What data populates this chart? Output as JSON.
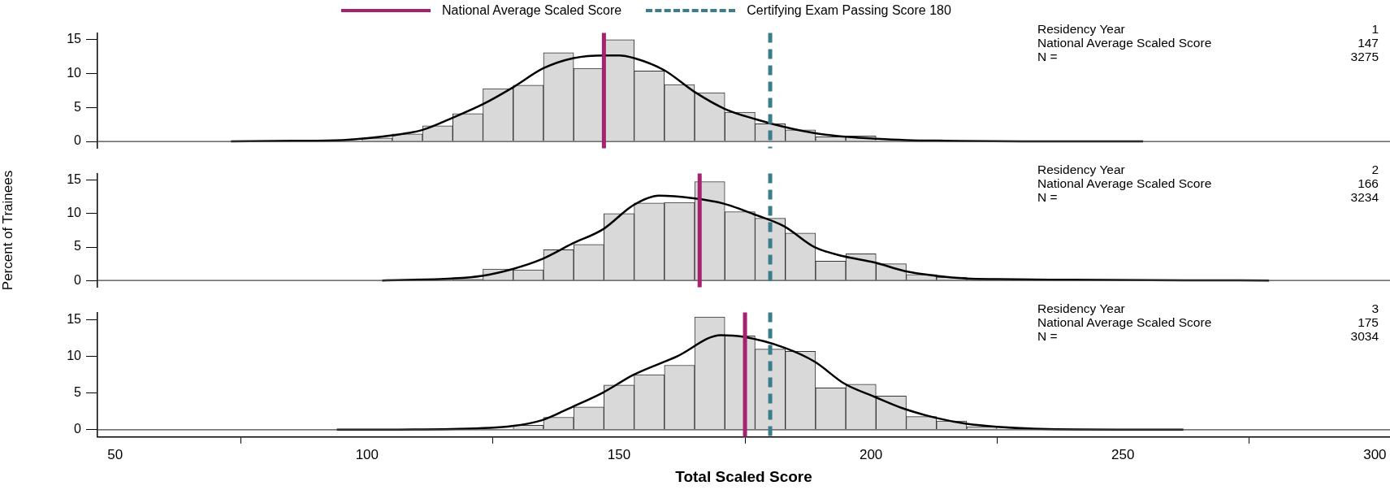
{
  "chart_data": [
    {
      "type": "histogram",
      "bins": [
        99,
        105,
        111,
        117,
        123,
        129,
        135,
        141,
        147,
        153,
        159,
        165,
        171,
        177,
        183,
        189,
        195,
        201,
        207
      ],
      "values": [
        0.5,
        1.1,
        2.3,
        4.1,
        7.8,
        8.3,
        13.1,
        10.8,
        15.0,
        10.4,
        8.4,
        7.2,
        4.3,
        2.6,
        1.7,
        0.7,
        0.8,
        null
      ],
      "color": "#d9d9d9",
      "series": [
        {
          "type": "line",
          "color": "#000000",
          "x": [
            73,
            85,
            95.1,
            105,
            111,
            117,
            123,
            129,
            135,
            141,
            147,
            150,
            153,
            159,
            165,
            171,
            177,
            183,
            189,
            195,
            201,
            207,
            215,
            230,
            254
          ],
          "values": [
            0,
            0.1,
            0.2,
            0.9,
            1.7,
            3.5,
            5.5,
            8.0,
            10.8,
            12.3,
            12.7,
            12.7,
            12.3,
            10.5,
            7.3,
            4.8,
            3.3,
            2.1,
            1.2,
            0.7,
            0.4,
            0.2,
            0.1,
            0,
            0
          ]
        }
      ],
      "xlim": [
        46.5,
        303
      ],
      "ylim": [
        -1,
        16
      ],
      "yticks": [
        0,
        5,
        10,
        15
      ],
      "tick_labels": "y",
      "marker": "none",
      "legend": "top",
      "ref_lines": [
        {
          "axis": "y",
          "value": 0,
          "color": "#444444"
        },
        {
          "axis": "x",
          "value": 147,
          "label": "National Average Scaled Score",
          "color": "#a4226e"
        },
        {
          "axis": "x",
          "value": 180,
          "label": "Certifying Exam Passing Score 180",
          "color": "#3a7d8c",
          "line_style": "dashed"
        }
      ],
      "annotations": [
        "Residency Year 1",
        "National Average Scaled Score 147",
        "N = 3275"
      ]
    },
    {
      "type": "histogram",
      "bins": [
        117,
        123,
        129,
        135,
        141,
        147,
        153,
        159,
        165,
        171,
        177,
        183,
        189,
        195,
        201,
        207,
        213,
        219,
        225
      ],
      "values": [
        0.2,
        1.7,
        1.6,
        4.6,
        5.4,
        10.0,
        11.6,
        11.7,
        14.8,
        10.3,
        9.3,
        7.1,
        2.9,
        4.0,
        2.5,
        0.9,
        0.5,
        0.2
      ],
      "color": "#d9d9d9",
      "series": [
        {
          "type": "line",
          "color": "#000000",
          "x": [
            103,
            116.8,
            122.8,
            128.8,
            134.7,
            140.7,
            146.9,
            152.9,
            157.9,
            164.8,
            170.8,
            176.8,
            182.8,
            188.8,
            194.7,
            200.7,
            206.8,
            213,
            219,
            225,
            240,
            279
          ],
          "values": [
            0,
            0.3,
            0.7,
            1.7,
            3.2,
            5.5,
            7.7,
            11.3,
            12.7,
            12.3,
            11.5,
            9.9,
            8.1,
            5.0,
            3.6,
            2.7,
            1.4,
            0.7,
            0.3,
            0.2,
            0.1,
            0
          ]
        }
      ],
      "xlim": [
        46.5,
        303
      ],
      "ylim": [
        -1,
        16
      ],
      "yticks": [
        0,
        5,
        10,
        15
      ],
      "tick_labels": "y",
      "marker": "none",
      "ylabel": "Percent of Trainees",
      "ref_lines": [
        {
          "axis": "y",
          "value": 0,
          "color": "#444444"
        },
        {
          "axis": "x",
          "value": 166,
          "color": "#a4226e"
        },
        {
          "axis": "x",
          "value": 180,
          "color": "#3a7d8c",
          "line_style": "dashed"
        }
      ],
      "annotations": [
        "Residency Year 2",
        "National Average Scaled Score 166",
        "N = 3234"
      ]
    },
    {
      "type": "histogram",
      "bins": [
        129,
        135,
        141,
        147,
        153,
        159,
        165,
        171,
        177,
        183,
        189,
        195,
        201,
        207,
        213,
        219,
        225
      ],
      "values": [
        0.6,
        1.7,
        3.1,
        6.1,
        7.5,
        8.8,
        15.4,
        12.8,
        11.0,
        10.7,
        5.7,
        6.2,
        4.6,
        1.8,
        1.2,
        0.4
      ],
      "color": "#d9d9d9",
      "series": [
        {
          "type": "line",
          "color": "#000000",
          "x": [
            94,
            95.1,
            116.8,
            128.8,
            134.7,
            140.7,
            146.9,
            152.9,
            161.5,
            170.2,
            174.5,
            182.8,
            188.8,
            194.7,
            200.7,
            206.8,
            213,
            219,
            225,
            235,
            262
          ],
          "values": [
            0,
            0,
            0.1,
            0.5,
            1.3,
            3.1,
            5.1,
            7.5,
            10.0,
            12.9,
            12.7,
            11.2,
            9.3,
            6.3,
            4.5,
            2.8,
            1.6,
            0.8,
            0.4,
            0.1,
            0
          ]
        }
      ],
      "xlim": [
        46.5,
        303
      ],
      "xticks": [
        50,
        100,
        150,
        200,
        250,
        300
      ],
      "ylim": [
        -1,
        16
      ],
      "yticks": [
        0,
        5,
        10,
        15
      ],
      "marker": "none",
      "xlabel": "Total Scaled Score",
      "ref_lines": [
        {
          "axis": "y",
          "value": 0,
          "color": "#444444"
        },
        {
          "axis": "x",
          "value": 175,
          "color": "#a4226e"
        },
        {
          "axis": "x",
          "value": 180,
          "color": "#3a7d8c",
          "line_style": "dashed"
        }
      ],
      "annotations": [
        "Residency Year 3",
        "National Average Scaled Score 175",
        "N = 3034"
      ]
    }
  ]
}
